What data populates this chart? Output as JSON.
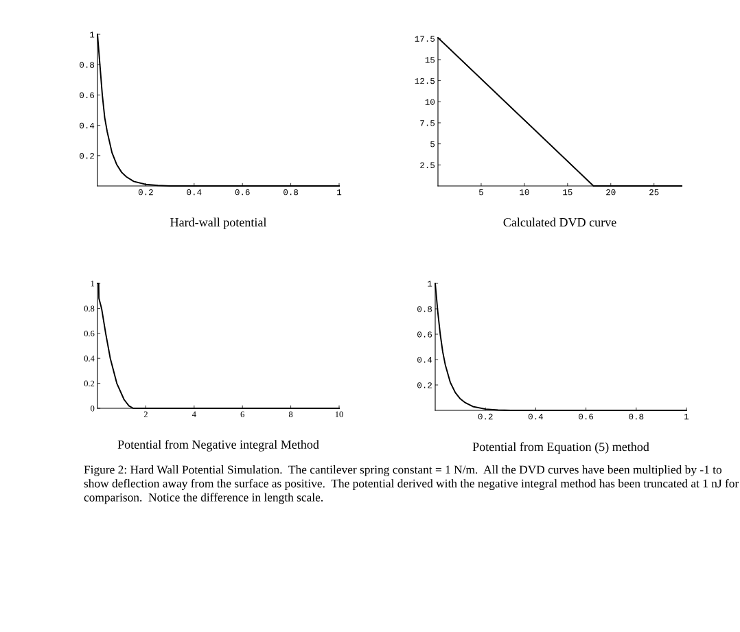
{
  "chart_data": [
    {
      "type": "line",
      "xlabel": "Hard-wall potential",
      "x": [
        0,
        0.01,
        0.02,
        0.03,
        0.04,
        0.06,
        0.08,
        0.1,
        0.12,
        0.15,
        0.2,
        0.25,
        0.3,
        0.4,
        0.6,
        0.8,
        1
      ],
      "series": [
        {
          "color": "#000000",
          "values": [
            1,
            0.8,
            0.6,
            0.45,
            0.36,
            0.22,
            0.14,
            0.09,
            0.06,
            0.03,
            0.01,
            0.003,
            0,
            0,
            0,
            0,
            0
          ]
        }
      ],
      "xlim": [
        0,
        1
      ],
      "ylim": [
        0,
        1
      ],
      "xticks": [
        0.2,
        0.4,
        0.6,
        0.8,
        1
      ],
      "yticks": [
        0.2,
        0.4,
        0.6,
        0.8,
        1
      ],
      "grid": false,
      "marker": "none",
      "line_style": "solid"
    },
    {
      "type": "line",
      "xlabel": "Calculated DVD curve",
      "x": [
        0,
        18,
        28.2
      ],
      "series": [
        {
          "color": "#000000",
          "values": [
            17.6,
            0,
            0
          ]
        }
      ],
      "xlim": [
        0,
        28.2
      ],
      "ylim": [
        0,
        17.6
      ],
      "xticks": [
        5,
        10,
        15,
        20,
        25
      ],
      "yticks": [
        2.5,
        5,
        7.5,
        10,
        12.5,
        15,
        17.5
      ],
      "grid": false,
      "marker": "none",
      "line_style": "solid"
    },
    {
      "type": "line",
      "xlabel": "Potential from Negative integral Method",
      "x": [
        0,
        0.05,
        0.06,
        0.17,
        0.34,
        0.53,
        0.8,
        1.1,
        1.3,
        1.48,
        10
      ],
      "series": [
        {
          "color": "#000000",
          "values": [
            1,
            1,
            0.88,
            0.8,
            0.6,
            0.4,
            0.2,
            0.07,
            0.02,
            0,
            0
          ]
        }
      ],
      "xlim": [
        0,
        10
      ],
      "ylim": [
        0,
        1
      ],
      "xticks": [
        2,
        4,
        6,
        8,
        10
      ],
      "yticks": [
        0,
        0.2,
        0.4,
        0.6,
        0.8,
        1
      ],
      "grid": false,
      "marker": "none",
      "line_style": "solid"
    },
    {
      "type": "line",
      "xlabel": "Potential from Equation (5) method",
      "x": [
        0,
        0.01,
        0.02,
        0.03,
        0.04,
        0.06,
        0.08,
        0.1,
        0.12,
        0.15,
        0.2,
        0.25,
        0.3,
        0.4,
        0.6,
        0.8,
        1
      ],
      "series": [
        {
          "color": "#000000",
          "values": [
            1,
            0.78,
            0.6,
            0.46,
            0.36,
            0.22,
            0.14,
            0.09,
            0.06,
            0.03,
            0.01,
            0.003,
            0,
            0,
            0,
            0,
            0
          ]
        }
      ],
      "xlim": [
        0,
        1
      ],
      "ylim": [
        0,
        1
      ],
      "xticks": [
        0.2,
        0.4,
        0.6,
        0.8,
        1
      ],
      "yticks": [
        0.2,
        0.4,
        0.6,
        0.8,
        1
      ],
      "grid": false,
      "marker": "none",
      "line_style": "solid",
      "annotations": [
        "Figure 2: Hard Wall Potential Simulation.  The cantilever spring constant = 1 N/m.  All the DVD curves have been multiplied by -1 to show deflection away from the surface as positive.  The potential derived with the negative integral method has been truncated at 1 nJ for comparison.  Notice the difference in length scale."
      ]
    }
  ]
}
